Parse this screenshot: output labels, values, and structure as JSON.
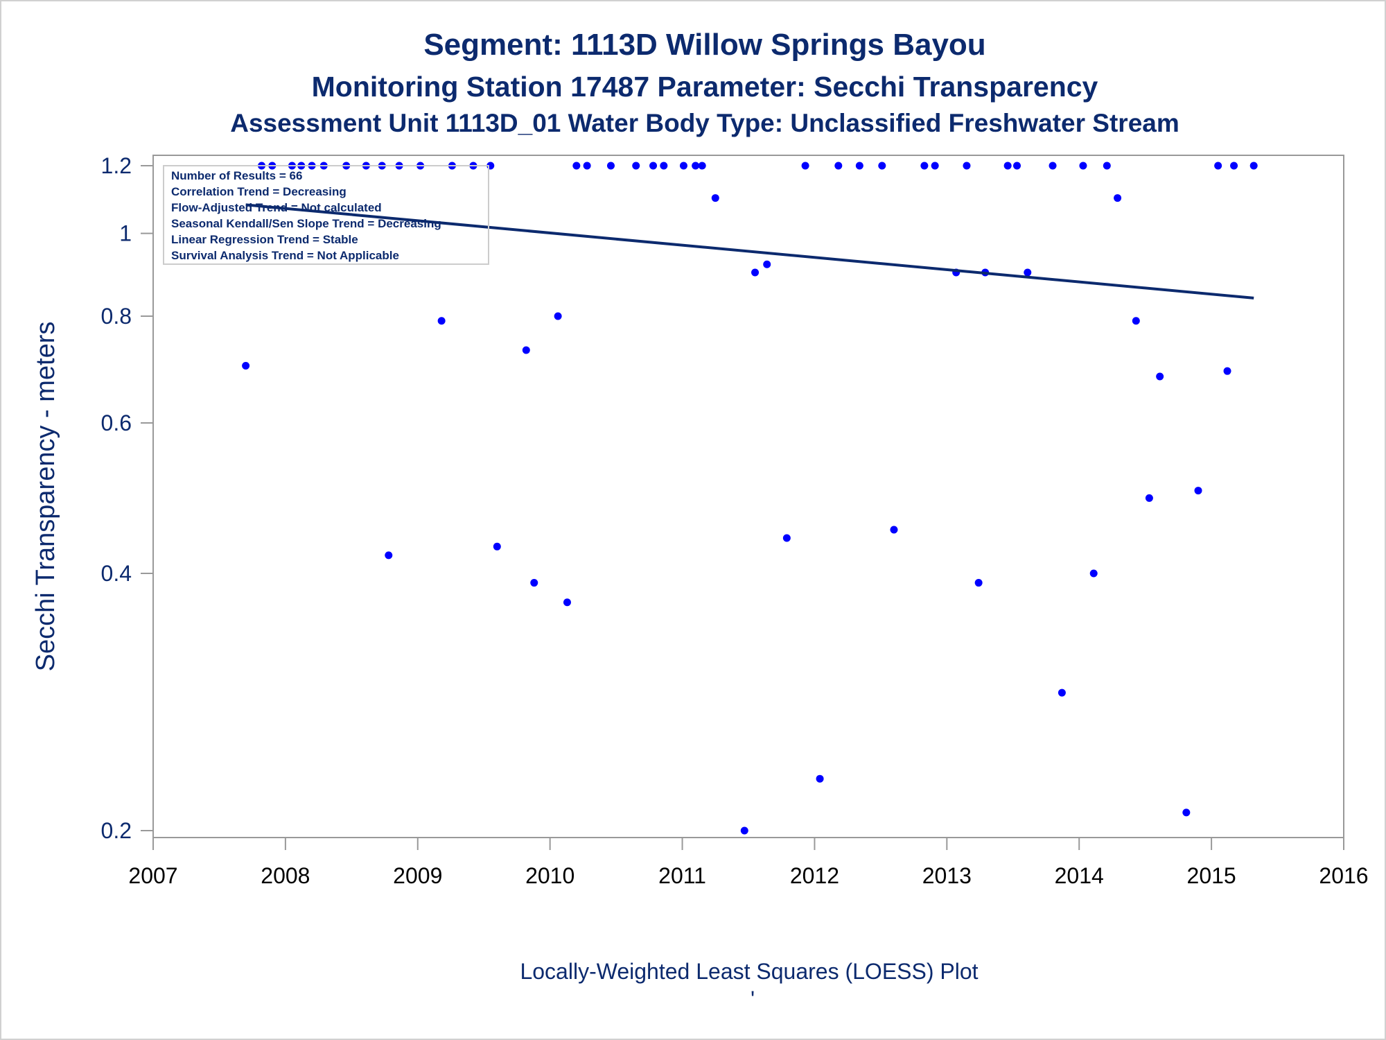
{
  "titles": {
    "line1": "Segment: 1113D  Willow Springs Bayou",
    "line2": "Monitoring Station 17487 Parameter: Secchi Transparency",
    "line3": "Assessment Unit 1113D_01   Water Body Type: Unclassified Freshwater Stream"
  },
  "footnote": "Locally-Weighted Least Squares (LOESS) Plot",
  "footnote_mark": "'",
  "stats": [
    "Number of Results = 66",
    "Correlation Trend = Decreasing",
    "Flow-Adjusted Trend = Not calculated",
    "Seasonal Kendall/Sen Slope Trend = Decreasing",
    "Linear Regression Trend = Stable",
    "Survival Analysis Trend = Not Applicable"
  ],
  "colors": {
    "title": "#0c2a6e",
    "points": "#0000ff",
    "trend_line": "#0c2a6e",
    "axis": "#999999"
  },
  "chart_data": {
    "type": "scatter",
    "ylabel": "Secchi Transparency - meters",
    "xlabel": "",
    "xlim": [
      2007,
      2016
    ],
    "ylim": [
      0.2,
      1.2
    ],
    "y_scale": "log",
    "x_ticks": [
      "2007",
      "2008",
      "2009",
      "2010",
      "2011",
      "2012",
      "2013",
      "2014",
      "2015",
      "2016"
    ],
    "y_ticks": [
      "0.2",
      "0.4",
      "0.6",
      "0.8",
      "1",
      "1.2"
    ],
    "grid": false,
    "legend": "none",
    "points": [
      {
        "x": 2007.7,
        "y": 0.7
      },
      {
        "x": 2007.82,
        "y": 1.2
      },
      {
        "x": 2007.9,
        "y": 1.2
      },
      {
        "x": 2008.05,
        "y": 1.2
      },
      {
        "x": 2008.12,
        "y": 1.2
      },
      {
        "x": 2008.2,
        "y": 1.2
      },
      {
        "x": 2008.29,
        "y": 1.2
      },
      {
        "x": 2008.46,
        "y": 1.2
      },
      {
        "x": 2008.61,
        "y": 1.2
      },
      {
        "x": 2008.73,
        "y": 1.2
      },
      {
        "x": 2008.78,
        "y": 0.42
      },
      {
        "x": 2008.86,
        "y": 1.2
      },
      {
        "x": 2009.02,
        "y": 1.2
      },
      {
        "x": 2009.18,
        "y": 0.79
      },
      {
        "x": 2009.26,
        "y": 1.2
      },
      {
        "x": 2009.42,
        "y": 1.2
      },
      {
        "x": 2009.55,
        "y": 1.2
      },
      {
        "x": 2009.6,
        "y": 0.43
      },
      {
        "x": 2009.82,
        "y": 0.73
      },
      {
        "x": 2009.88,
        "y": 0.39
      },
      {
        "x": 2010.06,
        "y": 0.8
      },
      {
        "x": 2010.13,
        "y": 0.37
      },
      {
        "x": 2010.2,
        "y": 1.2
      },
      {
        "x": 2010.28,
        "y": 1.2
      },
      {
        "x": 2010.46,
        "y": 1.2
      },
      {
        "x": 2010.65,
        "y": 1.2
      },
      {
        "x": 2010.78,
        "y": 1.2
      },
      {
        "x": 2010.86,
        "y": 1.2
      },
      {
        "x": 2011.01,
        "y": 1.2
      },
      {
        "x": 2011.1,
        "y": 1.2
      },
      {
        "x": 2011.15,
        "y": 1.2
      },
      {
        "x": 2011.25,
        "y": 1.1
      },
      {
        "x": 2011.47,
        "y": 0.2
      },
      {
        "x": 2011.55,
        "y": 0.9
      },
      {
        "x": 2011.64,
        "y": 0.92
      },
      {
        "x": 2011.79,
        "y": 0.44
      },
      {
        "x": 2011.93,
        "y": 1.2
      },
      {
        "x": 2012.04,
        "y": 0.23
      },
      {
        "x": 2012.18,
        "y": 1.2
      },
      {
        "x": 2012.34,
        "y": 1.2
      },
      {
        "x": 2012.51,
        "y": 1.2
      },
      {
        "x": 2012.6,
        "y": 0.45
      },
      {
        "x": 2012.83,
        "y": 1.2
      },
      {
        "x": 2012.91,
        "y": 1.2
      },
      {
        "x": 2013.07,
        "y": 0.9
      },
      {
        "x": 2013.15,
        "y": 1.2
      },
      {
        "x": 2013.24,
        "y": 0.39
      },
      {
        "x": 2013.29,
        "y": 0.9
      },
      {
        "x": 2013.46,
        "y": 1.2
      },
      {
        "x": 2013.53,
        "y": 1.2
      },
      {
        "x": 2013.61,
        "y": 0.9
      },
      {
        "x": 2013.8,
        "y": 1.2
      },
      {
        "x": 2013.87,
        "y": 0.29
      },
      {
        "x": 2014.03,
        "y": 1.2
      },
      {
        "x": 2014.11,
        "y": 0.4
      },
      {
        "x": 2014.21,
        "y": 1.2
      },
      {
        "x": 2014.29,
        "y": 1.1
      },
      {
        "x": 2014.43,
        "y": 0.79
      },
      {
        "x": 2014.53,
        "y": 0.49
      },
      {
        "x": 2014.61,
        "y": 0.68
      },
      {
        "x": 2014.81,
        "y": 0.21
      },
      {
        "x": 2014.9,
        "y": 0.5
      },
      {
        "x": 2015.05,
        "y": 1.2
      },
      {
        "x": 2015.12,
        "y": 0.69
      },
      {
        "x": 2015.17,
        "y": 1.2
      },
      {
        "x": 2015.32,
        "y": 1.2
      }
    ],
    "trend_line": [
      {
        "x": 2007.7,
        "y": 1.08
      },
      {
        "x": 2015.32,
        "y": 0.84
      }
    ]
  }
}
